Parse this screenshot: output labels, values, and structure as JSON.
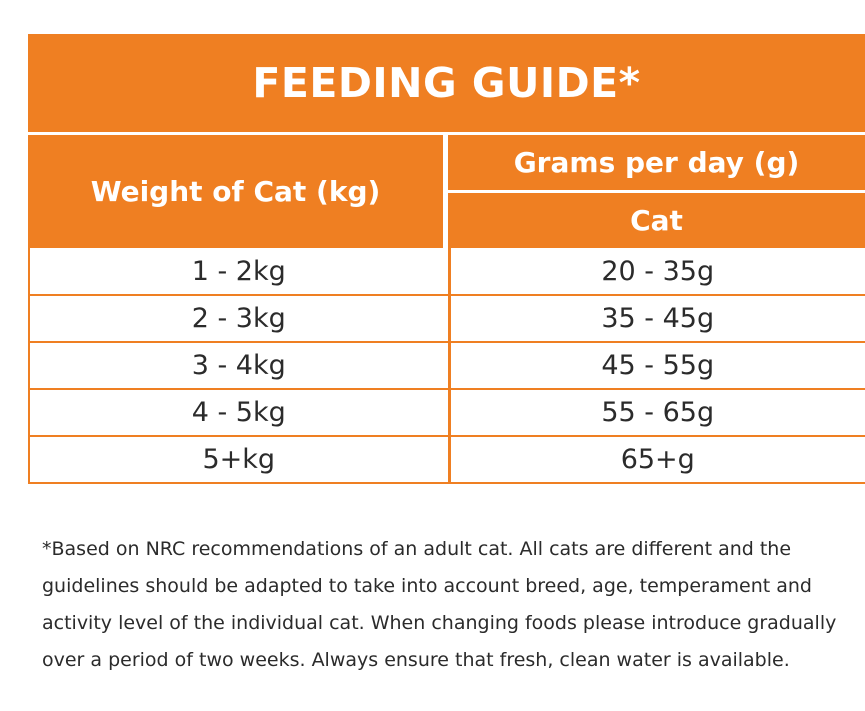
{
  "title": "FEEDING GUIDE*",
  "header": {
    "weight_label": "Weight of Cat (kg)",
    "grams_label": "Grams per day (g)",
    "sub_label": "Cat"
  },
  "rows": [
    {
      "weight": "1 - 2kg",
      "grams": "20 - 35g"
    },
    {
      "weight": "2 - 3kg",
      "grams": "35 - 45g"
    },
    {
      "weight": "3 - 4kg",
      "grams": "45 - 55g"
    },
    {
      "weight": "4 - 5kg",
      "grams": "55 - 65g"
    },
    {
      "weight": "5+kg",
      "grams": "65+g"
    }
  ],
  "footnote": "*Based on NRC recommendations of an adult cat. All cats are different and the guidelines should be adapted to take into account breed, age, temperament and activity level of the individual cat. When changing foods please introduce gradually over a period of two weeks. Always ensure that fresh, clean water is available.",
  "colors": {
    "accent": "#ef7f22",
    "text": "#2b2b2b"
  }
}
